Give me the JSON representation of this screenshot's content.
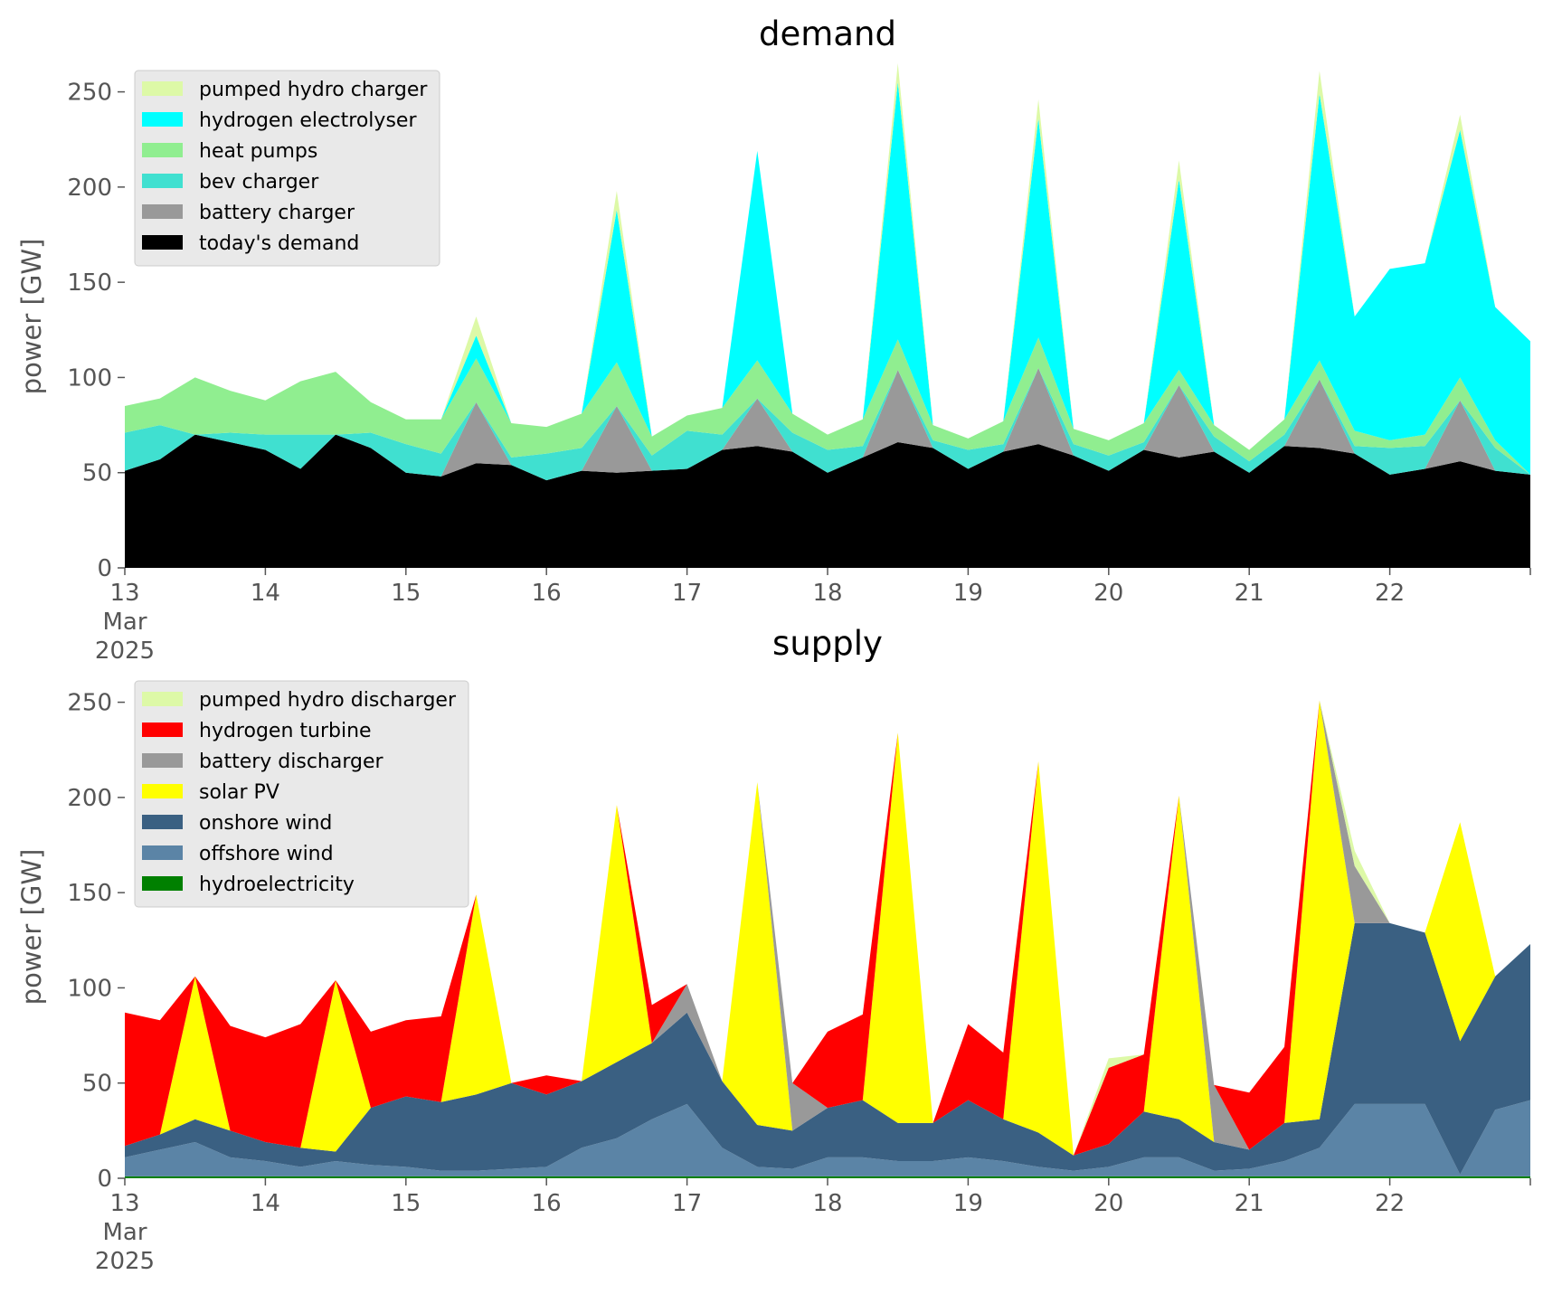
{
  "chart_data": [
    {
      "type": "area",
      "stacked": true,
      "title": "demand",
      "ylabel": "power [GW]",
      "xlabel": "",
      "ylim": [
        0,
        265
      ],
      "yticks": [
        0,
        50,
        100,
        150,
        200,
        250
      ],
      "xlim": [
        0,
        10
      ],
      "x_unit": "days since 13 Mar 2025 00:00",
      "xtick_labels": [
        "13\nMar\n2025",
        "14",
        "15",
        "16",
        "17",
        "18",
        "19",
        "20",
        "21",
        "22"
      ],
      "legend_position": "top-left",
      "grid": false,
      "x": [
        0,
        0.25,
        0.5,
        0.75,
        1,
        1.25,
        1.5,
        1.75,
        2,
        2.25,
        2.5,
        2.75,
        3,
        3.25,
        3.5,
        3.75,
        4,
        4.25,
        4.5,
        4.75,
        5,
        5.25,
        5.5,
        5.75,
        6,
        6.25,
        6.5,
        6.75,
        7,
        7.25,
        7.5,
        7.75,
        8,
        8.25,
        8.5,
        8.75,
        9,
        9.25,
        9.5,
        9.75,
        10
      ],
      "series": [
        {
          "name": "today's demand",
          "color": "#000000",
          "values": [
            51,
            57,
            70,
            66,
            62,
            52,
            70,
            63,
            50,
            48,
            55,
            54,
            46,
            51,
            50,
            51,
            52,
            62,
            64,
            61,
            50,
            58,
            66,
            63,
            52,
            61,
            65,
            59,
            51,
            62,
            58,
            61,
            50,
            64,
            63,
            60,
            49,
            52,
            56,
            51,
            49
          ]
        },
        {
          "name": "battery charger",
          "color": "#999999",
          "values": [
            0,
            0,
            0,
            0,
            0,
            0,
            0,
            0,
            0,
            0,
            32,
            0,
            0,
            0,
            35,
            0,
            0,
            0,
            25,
            0,
            0,
            0,
            38,
            0,
            0,
            0,
            40,
            0,
            0,
            0,
            38,
            0,
            0,
            0,
            36,
            0,
            0,
            0,
            32,
            0,
            0
          ]
        },
        {
          "name": "bev charger",
          "color": "#40e0d0",
          "values": [
            20,
            18,
            0,
            5,
            8,
            18,
            0,
            8,
            15,
            12,
            0,
            4,
            14,
            12,
            0,
            8,
            20,
            8,
            0,
            10,
            12,
            6,
            0,
            4,
            10,
            4,
            0,
            6,
            8,
            4,
            0,
            8,
            6,
            6,
            0,
            4,
            14,
            12,
            0,
            12,
            0
          ]
        },
        {
          "name": "heat pumps",
          "color": "#90ee90",
          "values": [
            14,
            14,
            30,
            22,
            18,
            28,
            33,
            16,
            13,
            18,
            23,
            18,
            14,
            18,
            23,
            10,
            8,
            14,
            20,
            10,
            8,
            14,
            16,
            8,
            6,
            12,
            16,
            8,
            8,
            10,
            8,
            6,
            6,
            8,
            10,
            8,
            4,
            6,
            12,
            4,
            0
          ]
        },
        {
          "name": "hydrogen electrolyser",
          "color": "#00ffff",
          "values": [
            0,
            0,
            0,
            0,
            0,
            0,
            0,
            0,
            0,
            0,
            12,
            0,
            0,
            0,
            80,
            0,
            0,
            0,
            110,
            0,
            0,
            0,
            135,
            0,
            0,
            0,
            115,
            0,
            0,
            0,
            100,
            0,
            0,
            0,
            140,
            60,
            90,
            90,
            130,
            70,
            70
          ]
        },
        {
          "name": "pumped hydro charger",
          "color": "#ddf9a7",
          "values": [
            0,
            0,
            0,
            0,
            0,
            0,
            0,
            0,
            0,
            0,
            10,
            0,
            0,
            0,
            10,
            0,
            0,
            0,
            0,
            0,
            0,
            0,
            10,
            0,
            0,
            0,
            10,
            0,
            0,
            0,
            10,
            0,
            0,
            0,
            12,
            0,
            0,
            0,
            8,
            0,
            0
          ]
        }
      ]
    },
    {
      "type": "area",
      "stacked": true,
      "title": "supply",
      "ylabel": "power [GW]",
      "xlabel": "",
      "ylim": [
        0,
        265
      ],
      "yticks": [
        0,
        50,
        100,
        150,
        200,
        250
      ],
      "xlim": [
        0,
        10
      ],
      "x_unit": "days since 13 Mar 2025 00:00",
      "xtick_labels": [
        "13\nMar\n2025",
        "14",
        "15",
        "16",
        "17",
        "18",
        "19",
        "20",
        "21",
        "22"
      ],
      "legend_position": "top-left",
      "grid": false,
      "x": [
        0,
        0.25,
        0.5,
        0.75,
        1,
        1.25,
        1.5,
        1.75,
        2,
        2.25,
        2.5,
        2.75,
        3,
        3.25,
        3.5,
        3.75,
        4,
        4.25,
        4.5,
        4.75,
        5,
        5.25,
        5.5,
        5.75,
        6,
        6.25,
        6.5,
        6.75,
        7,
        7.25,
        7.5,
        7.75,
        8,
        8.25,
        8.5,
        8.75,
        9,
        9.25,
        9.5,
        9.75,
        10
      ],
      "series": [
        {
          "name": "hydroelectricity",
          "color": "#008000",
          "values": [
            1,
            1,
            1,
            1,
            1,
            1,
            1,
            1,
            1,
            1,
            1,
            1,
            1,
            1,
            1,
            1,
            1,
            1,
            1,
            1,
            1,
            1,
            1,
            1,
            1,
            1,
            1,
            1,
            1,
            1,
            1,
            1,
            1,
            1,
            1,
            1,
            1,
            1,
            1,
            1,
            1
          ]
        },
        {
          "name": "offshore wind",
          "color": "#5b84a6",
          "values": [
            10,
            14,
            18,
            10,
            8,
            5,
            8,
            6,
            5,
            3,
            3,
            4,
            5,
            15,
            20,
            30,
            38,
            15,
            5,
            4,
            10,
            10,
            8,
            8,
            10,
            8,
            5,
            3,
            5,
            10,
            10,
            3,
            4,
            8,
            15,
            38,
            38,
            38,
            1,
            35,
            40
          ]
        },
        {
          "name": "onshore wind",
          "color": "#3a6082",
          "values": [
            6,
            8,
            12,
            14,
            10,
            10,
            5,
            30,
            37,
            36,
            40,
            45,
            38,
            35,
            40,
            40,
            48,
            35,
            22,
            20,
            26,
            30,
            20,
            20,
            30,
            22,
            18,
            8,
            12,
            24,
            20,
            15,
            10,
            20,
            15,
            95,
            95,
            90,
            70,
            70,
            82
          ]
        },
        {
          "name": "solar PV",
          "color": "#ffff00",
          "values": [
            0,
            0,
            75,
            0,
            0,
            0,
            90,
            0,
            0,
            0,
            105,
            0,
            0,
            0,
            135,
            0,
            0,
            0,
            180,
            0,
            0,
            0,
            205,
            0,
            0,
            0,
            195,
            0,
            0,
            0,
            170,
            0,
            0,
            0,
            220,
            0,
            0,
            0,
            115,
            0,
            0
          ]
        },
        {
          "name": "battery discharger",
          "color": "#999999",
          "values": [
            0,
            0,
            0,
            0,
            0,
            0,
            0,
            0,
            0,
            0,
            0,
            0,
            0,
            0,
            0,
            0,
            15,
            0,
            0,
            25,
            0,
            0,
            0,
            0,
            0,
            0,
            0,
            0,
            0,
            0,
            0,
            30,
            0,
            0,
            0,
            30,
            0,
            0,
            0,
            0,
            0
          ]
        },
        {
          "name": "hydrogen turbine",
          "color": "#ff0000",
          "values": [
            70,
            60,
            0,
            55,
            55,
            65,
            0,
            40,
            40,
            45,
            0,
            0,
            10,
            0,
            0,
            20,
            0,
            0,
            0,
            0,
            40,
            45,
            0,
            0,
            40,
            35,
            0,
            0,
            40,
            30,
            0,
            0,
            30,
            40,
            0,
            0,
            0,
            0,
            0,
            0,
            0
          ]
        },
        {
          "name": "pumped hydro discharger",
          "color": "#ddf9a7",
          "values": [
            0,
            0,
            0,
            0,
            0,
            0,
            0,
            0,
            0,
            0,
            0,
            0,
            0,
            0,
            0,
            0,
            0,
            0,
            0,
            0,
            0,
            0,
            0,
            0,
            0,
            0,
            0,
            0,
            5,
            0,
            0,
            0,
            0,
            0,
            0,
            8,
            0,
            0,
            0,
            0,
            0
          ]
        }
      ]
    }
  ]
}
